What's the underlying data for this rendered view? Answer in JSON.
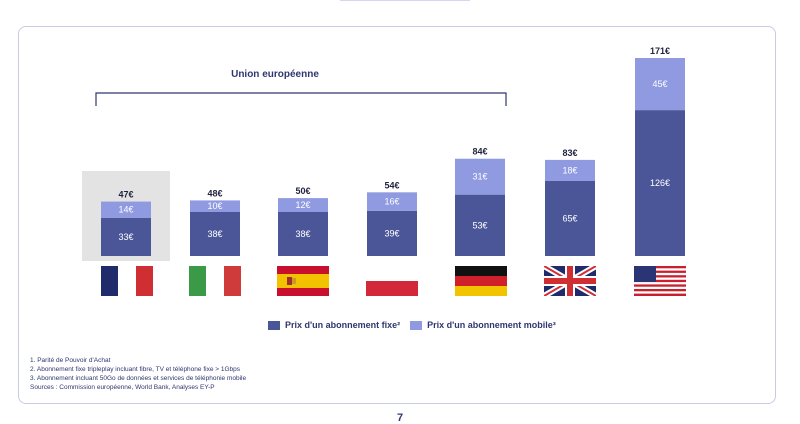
{
  "chart_data": {
    "type": "bar",
    "stacked": true,
    "categories": [
      "France",
      "Italie",
      "Espagne",
      "Pologne",
      "Allemagne",
      "Royaume-Uni",
      "États-Unis"
    ],
    "series": [
      {
        "name": "Prix d'un abonnement fixe²",
        "values": [
          33,
          38,
          38,
          39,
          53,
          65,
          126
        ],
        "color": "#4b5698"
      },
      {
        "name": "Prix d'un abonnement mobile³",
        "values": [
          14,
          10,
          12,
          16,
          31,
          18,
          45
        ],
        "color": "#8f9ae0"
      }
    ],
    "totals": [
      47,
      48,
      50,
      54,
      84,
      83,
      171
    ],
    "currency": "€",
    "ylim": [
      0,
      171
    ],
    "highlight_category": "France",
    "bracket_label": "Union européenne",
    "bracket_span": [
      "France",
      "Allemagne"
    ],
    "legend_position": "bottom",
    "grid": false
  },
  "flags": [
    "fr-flag",
    "it-flag",
    "es-flag",
    "pl-flag",
    "de-flag",
    "uk-flag",
    "us-flag"
  ],
  "legend": {
    "fixed": "Prix d'un abonnement fixe²",
    "mobile": "Prix d'un abonnement mobile³"
  },
  "notes": [
    "1. Parité de Pouvoir d'Achat",
    "2. Abonnement fixe tripleplay incluant fibre, TV et téléphone fixe > 1Gbps",
    "3. Abonnement incluant 50Go de données et services de téléphonie mobile",
    "Sources : Commission européenne, World Bank, Analyses EY-P"
  ],
  "page_number": "7",
  "colors": {
    "fixed": "#4b5698",
    "mobile": "#8f9ae0",
    "highlight": "#e3e3e3",
    "text": "#2f3670"
  }
}
